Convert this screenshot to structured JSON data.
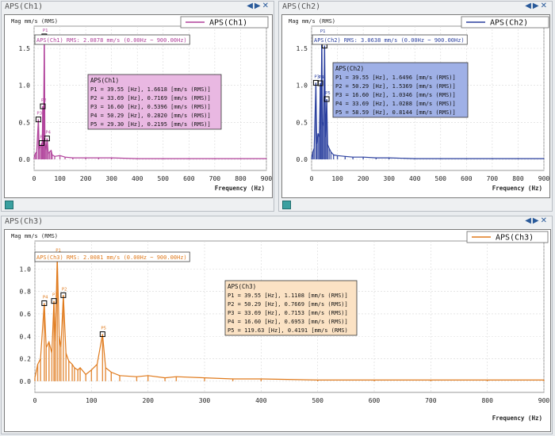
{
  "panels": [
    {
      "tab": "APS(Ch1)",
      "ylabel": "Mag mm/s (RMS)",
      "legend": "APS(Ch1)",
      "rms_text": "APS(Ch1) RMS: 2.0878 mm/s (0.00Hz ~ 900.00Hz)",
      "xlabel": "Frequency (Hz)",
      "color": "#b0409a",
      "box_bg": "#e9b8e2",
      "box_title": "APS(Ch1)",
      "peak_lines": [
        "P1 = 39.55 [Hz], 1.6618 [mm/s (RMS)]",
        "P2 = 33.69 [Hz], 0.7169 [mm/s (RMS)]",
        "P3 = 16.60 [Hz], 0.5396 [mm/s (RMS)]",
        "P4 = 50.29 [Hz], 0.2820 [mm/s (RMS)]",
        "P5 = 29.30 [Hz], 0.2195 [mm/s (RMS)]"
      ]
    },
    {
      "tab": "APS(Ch2)",
      "ylabel": "Mag mm/s (RMS)",
      "legend": "APS(Ch2)",
      "rms_text": "APS(Ch2) RMS: 3.0638 mm/s (0.00Hz ~ 900.00Hz)",
      "xlabel": "Frequency (Hz)",
      "color": "#2a3f9e",
      "box_bg": "#9fb0e6",
      "box_title": "APS(Ch2)",
      "peak_lines": [
        "P1 = 39.55 [Hz], 1.6496 [mm/s (RMS)]",
        "P2 = 50.29 [Hz], 1.5369 [mm/s (RMS)]",
        "P3 = 16.60 [Hz], 1.0346 [mm/s (RMS)]",
        "P4 = 33.69 [Hz], 1.0288 [mm/s (RMS)]",
        "P5 = 58.59 [Hz], 0.8144 [mm/s (RMS)]"
      ]
    },
    {
      "tab": "APS(Ch3)",
      "ylabel": "Mag mm/s (RMS)",
      "legend": "APS(Ch3)",
      "rms_text": "APS(Ch3) RMS: 2.0081 mm/s (0.00Hz ~ 900.00Hz)",
      "xlabel": "Frequency (Hz)",
      "color": "#e07a1c",
      "box_bg": "#fbe2c4",
      "box_title": "APS(Ch3)",
      "peak_lines": [
        "P1 = 39.55 [Hz], 1.1108 [mm/s (RMS)]",
        "P2 = 50.29 [Hz], 0.7669 [mm/s (RMS)]",
        "P3 = 33.69 [Hz], 0.7153 [mm/s (RMS)]",
        "P4 = 16.60 [Hz], 0.6953 [mm/s (RMS)]",
        "P5 = 119.63 [Hz], 0.4191 [mm/s (RMS)"
      ]
    }
  ],
  "chart_data": [
    {
      "type": "line",
      "title": "APS(Ch1)",
      "xlabel": "Frequency (Hz)",
      "ylabel": "Mag mm/s (RMS)",
      "xlim": [
        0,
        900
      ],
      "ylim": [
        -0.15,
        1.8
      ],
      "xticks": [
        0,
        100,
        200,
        300,
        400,
        500,
        600,
        700,
        800,
        900
      ],
      "yticks": [
        0.0,
        0.5,
        1.0,
        1.5
      ],
      "series": [
        {
          "name": "APS(Ch1)",
          "x": [
            0,
            5,
            10,
            16.6,
            20,
            25,
            29.3,
            31,
            33.69,
            36,
            39.55,
            42,
            46,
            50.29,
            55,
            60,
            66,
            70,
            80,
            100,
            120,
            150,
            200,
            250,
            300,
            400,
            500,
            600,
            700,
            800,
            900
          ],
          "y": [
            0.02,
            0.08,
            0.1,
            0.5396,
            0.15,
            0.18,
            0.2195,
            0.12,
            0.7169,
            0.2,
            1.6618,
            0.25,
            0.12,
            0.282,
            0.08,
            0.1,
            0.12,
            0.06,
            0.04,
            0.05,
            0.03,
            0.02,
            0.02,
            0.02,
            0.02,
            0.01,
            0.01,
            0.01,
            0.01,
            0.01,
            0.01
          ]
        }
      ],
      "peaks": [
        {
          "label": "P1",
          "x": 39.55,
          "y": 1.6618
        },
        {
          "label": "P2",
          "x": 33.69,
          "y": 0.7169
        },
        {
          "label": "P3",
          "x": 16.6,
          "y": 0.5396
        },
        {
          "label": "P4",
          "x": 50.29,
          "y": 0.282
        },
        {
          "label": "P5",
          "x": 29.3,
          "y": 0.2195
        }
      ]
    },
    {
      "type": "line",
      "title": "APS(Ch2)",
      "xlabel": "Frequency (Hz)",
      "ylabel": "Mag mm/s (RMS)",
      "xlim": [
        0,
        900
      ],
      "ylim": [
        -0.15,
        1.8
      ],
      "xticks": [
        0,
        100,
        200,
        300,
        400,
        500,
        600,
        700,
        800,
        900
      ],
      "yticks": [
        0.0,
        0.5,
        1.0,
        1.5
      ],
      "series": [
        {
          "name": "APS(Ch2)",
          "x": [
            0,
            5,
            10,
            16.6,
            20,
            25,
            30,
            33.69,
            36,
            39.55,
            42,
            46,
            50.29,
            54,
            58.59,
            62,
            68,
            75,
            85,
            100,
            130,
            160,
            200,
            250,
            300,
            400,
            500,
            600,
            700,
            800,
            900
          ],
          "y": [
            0.02,
            0.1,
            0.15,
            1.0346,
            0.2,
            0.35,
            0.3,
            1.0288,
            0.4,
            1.6496,
            0.5,
            0.45,
            1.5369,
            0.3,
            0.8144,
            0.2,
            0.15,
            0.1,
            0.06,
            0.05,
            0.04,
            0.03,
            0.03,
            0.02,
            0.02,
            0.01,
            0.01,
            0.01,
            0.01,
            0.01,
            0.01
          ]
        }
      ],
      "peaks": [
        {
          "label": "P1",
          "x": 39.55,
          "y": 1.6496
        },
        {
          "label": "P2",
          "x": 50.29,
          "y": 1.5369
        },
        {
          "label": "P3",
          "x": 16.6,
          "y": 1.0346
        },
        {
          "label": "P4",
          "x": 33.69,
          "y": 1.0288
        },
        {
          "label": "P5",
          "x": 58.59,
          "y": 0.8144
        }
      ]
    },
    {
      "type": "line",
      "title": "APS(Ch3)",
      "xlabel": "Frequency (Hz)",
      "ylabel": "Mag mm/s (RMS)",
      "xlim": [
        0,
        900
      ],
      "ylim": [
        -0.1,
        1.25
      ],
      "xticks": [
        0,
        100,
        200,
        300,
        400,
        500,
        600,
        700,
        800,
        900
      ],
      "yticks": [
        0.0,
        0.2,
        0.4,
        0.6,
        0.8,
        1.0
      ],
      "series": [
        {
          "name": "APS(Ch3)",
          "x": [
            0,
            5,
            10,
            16.6,
            20,
            25,
            30,
            33.69,
            36,
            39.55,
            43,
            46,
            50.29,
            55,
            60,
            66,
            70,
            76,
            80,
            90,
            100,
            110,
            119.63,
            125,
            135,
            150,
            180,
            200,
            230,
            250,
            300,
            350,
            400,
            500,
            600,
            700,
            800,
            900
          ],
          "y": [
            0.03,
            0.15,
            0.2,
            0.6953,
            0.3,
            0.35,
            0.25,
            0.7153,
            0.35,
            1.1108,
            0.4,
            0.3,
            0.7669,
            0.25,
            0.18,
            0.15,
            0.12,
            0.1,
            0.12,
            0.06,
            0.1,
            0.15,
            0.4191,
            0.12,
            0.08,
            0.05,
            0.04,
            0.05,
            0.03,
            0.04,
            0.03,
            0.02,
            0.02,
            0.01,
            0.01,
            0.01,
            0.01,
            0.01
          ]
        }
      ],
      "peaks": [
        {
          "label": "P1",
          "x": 39.55,
          "y": 1.1108
        },
        {
          "label": "P2",
          "x": 50.29,
          "y": 0.7669
        },
        {
          "label": "P3",
          "x": 33.69,
          "y": 0.7153
        },
        {
          "label": "P4",
          "x": 16.6,
          "y": 0.6953
        },
        {
          "label": "P5",
          "x": 119.63,
          "y": 0.4191
        }
      ]
    }
  ]
}
